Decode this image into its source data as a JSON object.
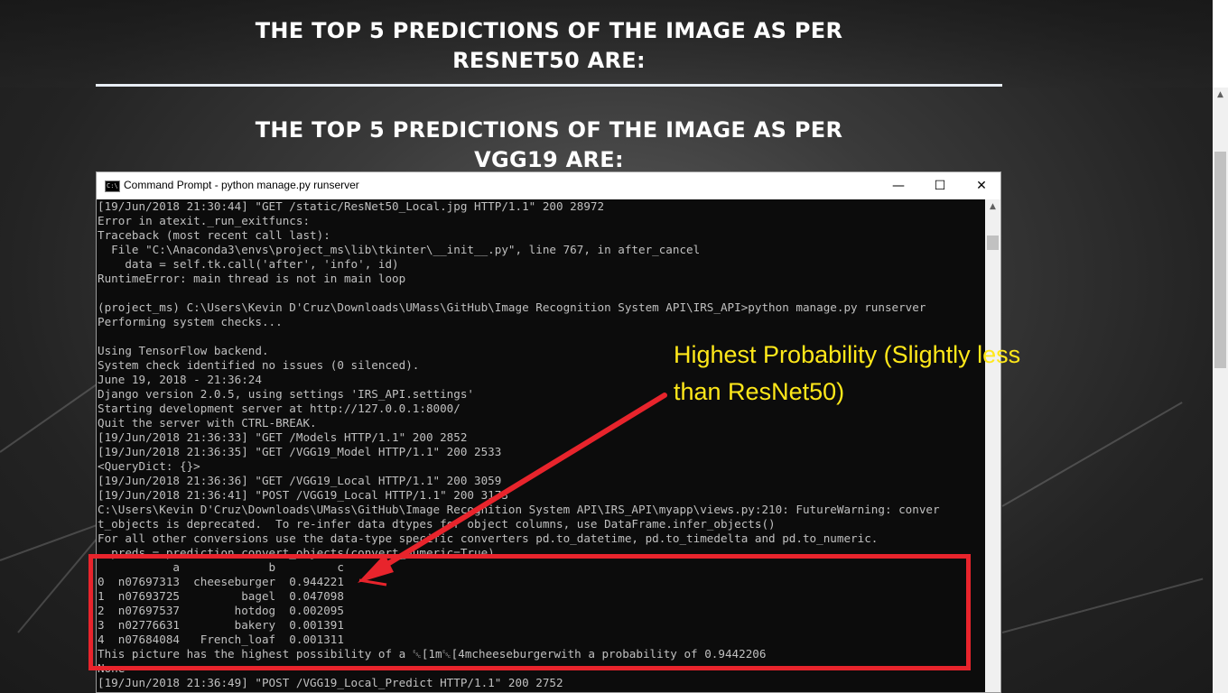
{
  "page": {
    "heading_resnet_line1": "THE TOP 5 PREDICTIONS OF THE IMAGE AS PER",
    "heading_resnet_line2": "RESNET50 ARE:",
    "heading_vgg_line1": "THE TOP 5 PREDICTIONS OF THE IMAGE AS PER",
    "heading_vgg_line2": "VGG19 ARE:"
  },
  "window": {
    "title": "Command Prompt - python  manage.py runserver",
    "icon_text": "C:\\",
    "minimize_glyph": "—",
    "maximize_glyph": "☐",
    "close_glyph": "✕"
  },
  "console": {
    "lines": [
      "[19/Jun/2018 21:30:44] \"GET /static/ResNet50_Local.jpg HTTP/1.1\" 200 28972",
      "Error in atexit._run_exitfuncs:",
      "Traceback (most recent call last):",
      "  File \"C:\\Anaconda3\\envs\\project_ms\\lib\\tkinter\\__init__.py\", line 767, in after_cancel",
      "    data = self.tk.call('after', 'info', id)",
      "RuntimeError: main thread is not in main loop",
      "",
      "(project_ms) C:\\Users\\Kevin D'Cruz\\Downloads\\UMass\\GitHub\\Image Recognition System API\\IRS_API>python manage.py runserver",
      "Performing system checks...",
      "",
      "Using TensorFlow backend.",
      "System check identified no issues (0 silenced).",
      "June 19, 2018 - 21:36:24",
      "Django version 2.0.5, using settings 'IRS_API.settings'",
      "Starting development server at http://127.0.0.1:8000/",
      "Quit the server with CTRL-BREAK.",
      "[19/Jun/2018 21:36:33] \"GET /Models HTTP/1.1\" 200 2852",
      "[19/Jun/2018 21:36:35] \"GET /VGG19_Model HTTP/1.1\" 200 2533",
      "<QueryDict: {}>",
      "[19/Jun/2018 21:36:36] \"GET /VGG19_Local HTTP/1.1\" 200 3059",
      "[19/Jun/2018 21:36:41] \"POST /VGG19_Local HTTP/1.1\" 200 3173",
      "C:\\Users\\Kevin D'Cruz\\Downloads\\UMass\\GitHub\\Image Recognition System API\\IRS_API\\myapp\\views.py:210: FutureWarning: conver",
      "t_objects is deprecated.  To re-infer data dtypes for object columns, use DataFrame.infer_objects()",
      "For all other conversions use the data-type specific converters pd.to_datetime, pd.to_timedelta and pd.to_numeric.",
      "  preds = prediction.convert_objects(convert_numeric=True)",
      "           a             b         c",
      "0  n07697313  cheeseburger  0.944221",
      "1  n07693725         bagel  0.047098",
      "2  n07697537        hotdog  0.002095",
      "3  n02776631        bakery  0.001391",
      "4  n07684084   French_loaf  0.001311",
      "This picture has the highest possibility of a ␛[1m␛[4mcheeseburgerwith a probability of 0.9442206",
      "None",
      "[19/Jun/2018 21:36:49] \"POST /VGG19_Local_Predict HTTP/1.1\" 200 2752"
    ]
  },
  "annotation": {
    "line1": "Highest Probability (Slightly less",
    "line2": "than ResNet50)",
    "color_text": "#ffe81a",
    "color_box": "#e8242c"
  }
}
